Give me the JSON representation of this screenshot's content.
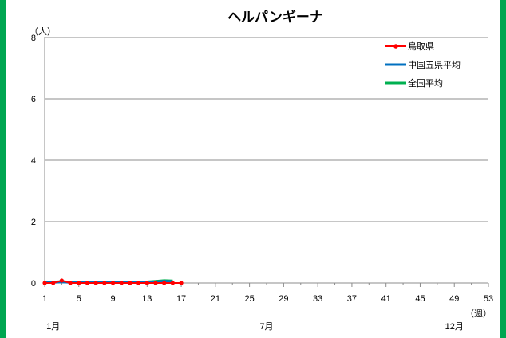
{
  "chart_data": {
    "type": "line",
    "title": "ヘルパンギーナ",
    "ylabel": "（人）",
    "xlabel": "（週）",
    "ylim": [
      0,
      8
    ],
    "yticks": [
      "0",
      "2",
      "4",
      "6",
      "8"
    ],
    "xlim": [
      1,
      53
    ],
    "xticks": [
      "1",
      "5",
      "9",
      "13",
      "17",
      "21",
      "25",
      "29",
      "33",
      "37",
      "41",
      "45",
      "49",
      "53"
    ],
    "minor_xticks": [
      3,
      7,
      11,
      15,
      19,
      23,
      27,
      31,
      35,
      39,
      43,
      47,
      51
    ],
    "months": [
      {
        "label": "1月",
        "week": 2
      },
      {
        "label": "7月",
        "week": 27
      },
      {
        "label": "12月",
        "week": 49
      }
    ],
    "grid": true,
    "legend": "top-right",
    "series": [
      {
        "name": "鳥取県",
        "color": "#ff0000",
        "marker": "circle",
        "x": [
          1,
          2,
          3,
          4,
          5,
          6,
          7,
          8,
          9,
          10,
          11,
          12,
          13,
          14,
          15,
          16,
          17
        ],
        "values": [
          0,
          0,
          0.08,
          0,
          0,
          0,
          0,
          0,
          0,
          0,
          0,
          0,
          0,
          0,
          0,
          0,
          0
        ]
      },
      {
        "name": "中国五県平均",
        "color": "#0070c0",
        "marker": "none",
        "x": [
          1,
          2,
          3,
          4,
          5,
          6,
          7,
          8,
          9,
          10,
          11,
          12,
          13,
          14,
          15,
          16
        ],
        "values": [
          0.01,
          0.02,
          0.03,
          0.02,
          0.02,
          0.02,
          0.02,
          0.02,
          0.02,
          0.02,
          0.02,
          0.02,
          0.03,
          0.04,
          0.06,
          0.05
        ]
      },
      {
        "name": "全国平均",
        "color": "#00b050",
        "marker": "none",
        "x": [
          1,
          2,
          3,
          4,
          5,
          6,
          7,
          8,
          9,
          10,
          11,
          12,
          13,
          14,
          15,
          16
        ],
        "values": [
          0.02,
          0.03,
          0.05,
          0.03,
          0.03,
          0.02,
          0.02,
          0.02,
          0.02,
          0.02,
          0.02,
          0.03,
          0.04,
          0.06,
          0.08,
          0.07
        ]
      }
    ]
  }
}
